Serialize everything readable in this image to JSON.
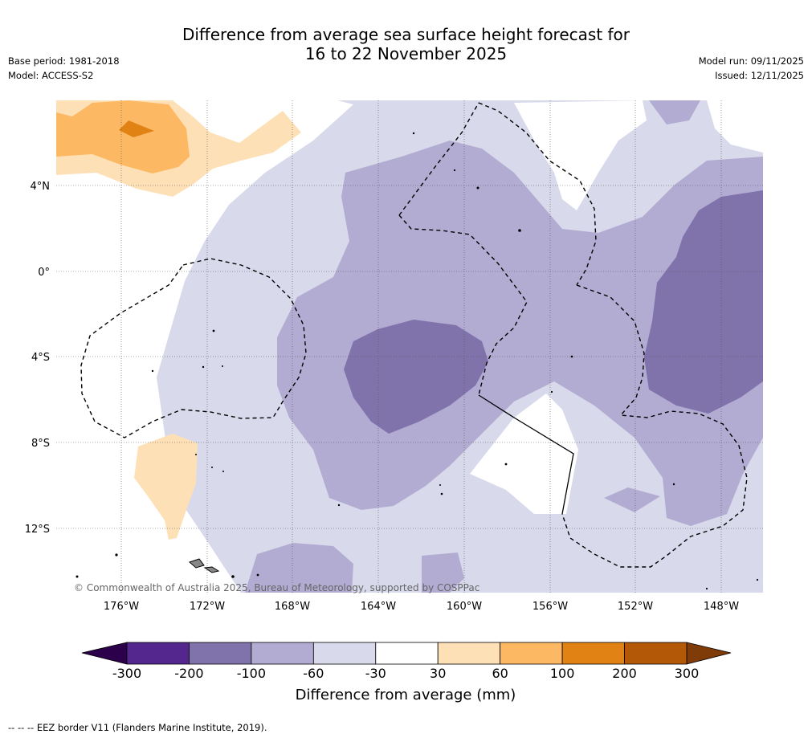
{
  "title": {
    "line1": "Difference from average sea surface height forecast for",
    "line2": "16 to 22 November 2025"
  },
  "meta": {
    "base_period": "Base period: 1981-2018",
    "model": "Model: ACCESS-S2",
    "model_run": "Model run: 09/11/2025",
    "issued": "Issued: 12/11/2025"
  },
  "map": {
    "lon_labels": [
      "176°W",
      "172°W",
      "168°W",
      "164°W",
      "160°W",
      "156°W",
      "152°W",
      "148°W"
    ],
    "lat_labels": [
      "4°N",
      "0°",
      "4°S",
      "8°S",
      "12°S"
    ],
    "copyright": "© Commonwealth of Australia 2025, Bureau of Meteorology, supported by COSPPac"
  },
  "legend": {
    "ticks": [
      "-300",
      "-200",
      "-100",
      "-60",
      "-30",
      "30",
      "60",
      "100",
      "200",
      "300"
    ],
    "colors": [
      "#54278f",
      "#8073ac",
      "#b2abd2",
      "#d8daeb",
      "#ffffff",
      "#fee0b6",
      "#fdb863",
      "#e08214",
      "#b35806"
    ],
    "under_color": "#2d004b",
    "over_color": "#7f3b08",
    "label": "Difference from average (mm)"
  },
  "footer": "--  --  -- EEZ border V11 (Flanders Marine Institute, 2019)."
}
